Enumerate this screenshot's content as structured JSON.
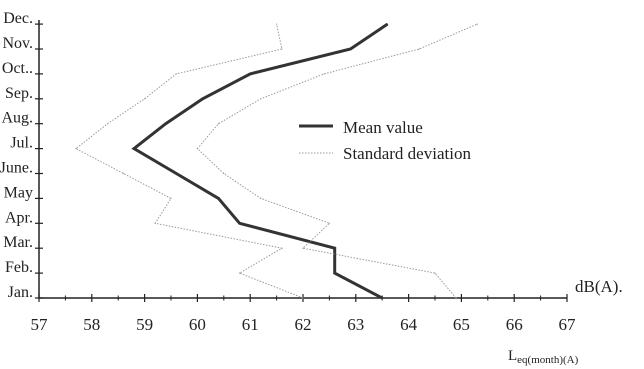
{
  "chart_data": {
    "type": "line",
    "orientation": "horizontal-value-axis",
    "categories": [
      "Jan.",
      "Feb.",
      "Mar.",
      "Apr.",
      "May",
      "June.",
      "Jul.",
      "Aug.",
      "Sep.",
      "Oct..",
      "Nov.",
      "Dec."
    ],
    "xlabel_main": "L",
    "xlabel_sub": "eq(month)(A)",
    "unit_label": "dB(A).",
    "xlim": [
      57,
      67
    ],
    "x_ticks": [
      "57",
      "58",
      "59",
      "60",
      "61",
      "62",
      "63",
      "64",
      "65",
      "66",
      "67"
    ],
    "legend_position": "center-right",
    "grid": false,
    "series": [
      {
        "name": "Mean value",
        "style": "solid-thick",
        "color": "#333333",
        "values": [
          63.5,
          62.6,
          62.6,
          60.8,
          60.4,
          59.6,
          58.8,
          59.4,
          60.1,
          61.0,
          62.9,
          63.6
        ]
      },
      {
        "name": "Standard deviation",
        "style": "dotted-thin",
        "color": "#9a9a9a",
        "values": [
          62.0,
          60.8,
          61.6,
          59.2,
          59.5,
          58.6,
          57.7,
          58.3,
          59.0,
          59.6,
          61.6,
          61.5
        ]
      },
      {
        "name": "",
        "style": "dotted-thin",
        "color": "#9a9a9a",
        "values": [
          64.9,
          64.5,
          62.0,
          62.5,
          61.2,
          60.5,
          60.0,
          60.4,
          61.2,
          62.4,
          64.2,
          65.3
        ]
      }
    ]
  }
}
